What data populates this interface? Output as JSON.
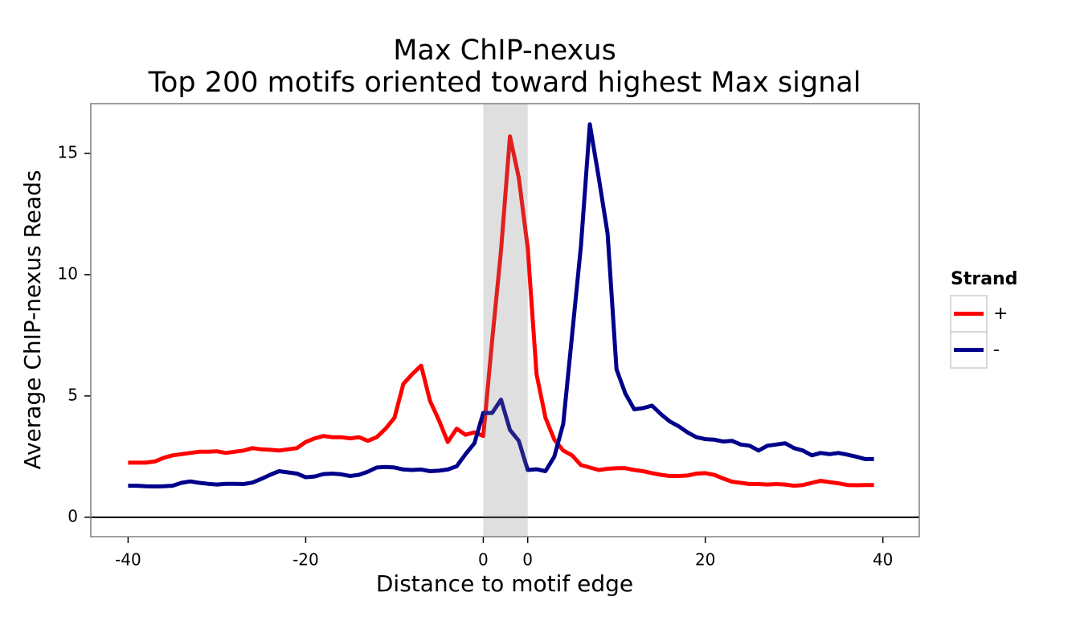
{
  "chart_data": {
    "type": "line",
    "title": "Max ChIP-nexus",
    "subtitle": "Top 200 motifs oriented toward highest Max signal",
    "x_label": "Distance to motif edge",
    "y_label": "Average ChIP-nexus Reads",
    "legend_title": "Strand",
    "legend_position": "right",
    "x": [
      -40,
      -39,
      -38,
      -37,
      -36,
      -35,
      -34,
      -33,
      -32,
      -31,
      -30,
      -29,
      -28,
      -27,
      -26,
      -25,
      -24,
      -23,
      -22,
      -21,
      -20,
      -19,
      -18,
      -17,
      -16,
      -15,
      -14,
      -13,
      -12,
      -11,
      -10,
      -9,
      -8,
      -7,
      -6,
      -5,
      -4,
      -3,
      -2,
      -1,
      0,
      1,
      2,
      3,
      4,
      5,
      6,
      7,
      8,
      9,
      10,
      11,
      12,
      13,
      14,
      15,
      16,
      17,
      18,
      19,
      20,
      21,
      22,
      23,
      24,
      25,
      26,
      27,
      28,
      29,
      30,
      31,
      32,
      33,
      34,
      35,
      36,
      37,
      38,
      39,
      40,
      41,
      42,
      43,
      44
    ],
    "series": [
      {
        "name": "+",
        "color": "#ff0000",
        "values": [
          2.25,
          2.25,
          2.25,
          2.3,
          2.45,
          2.55,
          2.6,
          2.65,
          2.7,
          2.7,
          2.72,
          2.65,
          2.7,
          2.75,
          2.85,
          2.8,
          2.78,
          2.75,
          2.8,
          2.85,
          3.1,
          3.25,
          3.35,
          3.3,
          3.3,
          3.25,
          3.3,
          3.15,
          3.3,
          3.65,
          4.1,
          5.5,
          5.9,
          6.25,
          4.8,
          4.0,
          3.1,
          3.65,
          3.4,
          3.5,
          3.35,
          7.3,
          11,
          15.7,
          14.0,
          11.1,
          5.9,
          4.1,
          3.2,
          2.75,
          2.55,
          2.15,
          2.05,
          1.95,
          2.0,
          2.02,
          2.02,
          1.95,
          1.9,
          1.82,
          1.75,
          1.7,
          1.7,
          1.72,
          1.8,
          1.82,
          1.75,
          1.6,
          1.47,
          1.42,
          1.37,
          1.37,
          1.35,
          1.37,
          1.35,
          1.3,
          1.33,
          1.42,
          1.5,
          1.45,
          1.4,
          1.33,
          1.32,
          1.33,
          1.33
        ]
      },
      {
        "name": "-",
        "color": "#00008b",
        "values": [
          1.3,
          1.3,
          1.28,
          1.27,
          1.28,
          1.3,
          1.42,
          1.48,
          1.42,
          1.38,
          1.35,
          1.38,
          1.38,
          1.37,
          1.43,
          1.58,
          1.75,
          1.9,
          1.85,
          1.8,
          1.65,
          1.68,
          1.78,
          1.8,
          1.77,
          1.7,
          1.75,
          1.88,
          2.05,
          2.07,
          2.05,
          1.97,
          1.95,
          1.97,
          1.9,
          1.92,
          1.97,
          2.1,
          2.6,
          3.05,
          4.3,
          4.3,
          4.85,
          3.6,
          3.15,
          1.95,
          1.98,
          1.9,
          2.5,
          3.85,
          7.5,
          11.2,
          16.2,
          14.0,
          11.7,
          6.1,
          5.1,
          4.45,
          4.5,
          4.6,
          4.25,
          3.95,
          3.75,
          3.5,
          3.3,
          3.22,
          3.2,
          3.12,
          3.15,
          3.0,
          2.95,
          2.75,
          2.95,
          3.0,
          3.05,
          2.85,
          2.75,
          2.55,
          2.65,
          2.6,
          2.65,
          2.58,
          2.5,
          2.4,
          2.4
        ]
      }
    ],
    "shade": [
      0,
      5
    ],
    "hline": 0,
    "xlim": [
      -44.2,
      49.1
    ],
    "ylim": [
      -0.8,
      17.05
    ],
    "xticks": [
      -40,
      -20,
      0,
      {
        "value": 5,
        "label": "0"
      },
      {
        "value": 25,
        "label": "20"
      },
      {
        "value": 45,
        "label": "40"
      }
    ],
    "yticks": [
      0,
      5,
      10,
      15
    ],
    "grid": false
  }
}
